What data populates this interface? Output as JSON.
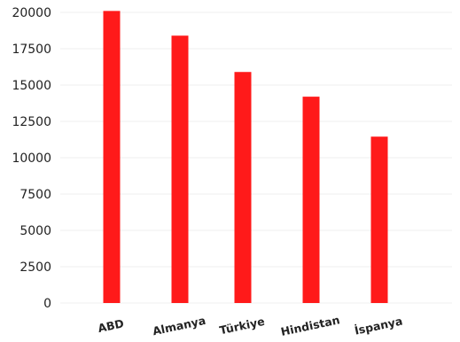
{
  "chart_data": {
    "type": "bar",
    "title": "",
    "xlabel": "",
    "ylabel": "",
    "categories": [
      "ABD",
      "Almanya",
      "Türkiye",
      "Hindistan",
      "İspanya"
    ],
    "values": [
      20100,
      18400,
      15900,
      14200,
      11450
    ],
    "ylim": [
      0,
      20000
    ],
    "yticks": [
      0,
      2500,
      5000,
      7500,
      10000,
      12500,
      15000,
      17500,
      20000
    ],
    "ytick_labels": [
      "0",
      "2500",
      "5000",
      "7500",
      "10000",
      "12500",
      "15000",
      "17500",
      "20000"
    ],
    "grid": true,
    "legend": "none",
    "colors": {
      "bar": "#ff1a1a",
      "grid": "#efefef",
      "text": "#222222"
    }
  }
}
